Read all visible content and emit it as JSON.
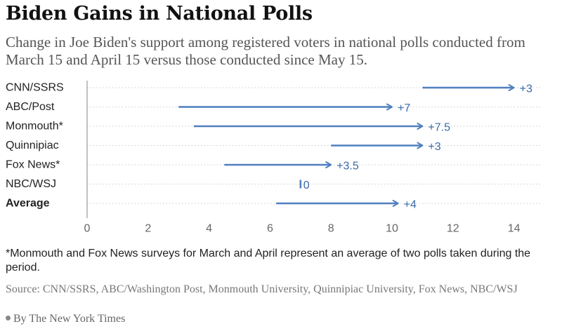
{
  "header": {
    "title": "Biden Gains in National Polls",
    "subtitle": "Change in Joe Biden's support among registered voters in national polls conducted from March 15 and April 15 versus those conducted since May 15."
  },
  "footer": {
    "note": "*Monmouth and Fox News surveys for March and April represent an average of two polls taken during the period.",
    "source": "Source: CNN/SSRS, ABC/Washington Post, Monmouth University, Quinnipiac University, Fox News, NBC/WSJ",
    "byline": "By The New York Times"
  },
  "colors": {
    "arrow": "#4f7fbf",
    "label": "#3a6aa8",
    "grid": "#cccccc",
    "axis": "#999999",
    "text": "#222222",
    "tick": "#666666"
  },
  "chart_data": {
    "type": "arrow-dot",
    "title": "Biden Gains in National Polls",
    "xlim": [
      0,
      15
    ],
    "xticks": [
      0,
      2,
      4,
      6,
      8,
      10,
      12,
      14
    ],
    "grid": "horizontal dotted",
    "series": [
      {
        "name": "CNN/SSRS",
        "from": 11,
        "to": 14,
        "label": "+3",
        "bold": false
      },
      {
        "name": "ABC/Post",
        "from": 3,
        "to": 10,
        "label": "+7",
        "bold": false
      },
      {
        "name": "Monmouth*",
        "from": 3.5,
        "to": 11,
        "label": "+7.5",
        "bold": false
      },
      {
        "name": "Quinnipiac",
        "from": 8,
        "to": 11,
        "label": "+3",
        "bold": false
      },
      {
        "name": "Fox News*",
        "from": 4.5,
        "to": 8,
        "label": "+3.5",
        "bold": false
      },
      {
        "name": "NBC/WSJ",
        "from": 7,
        "to": 7,
        "label": "0",
        "bold": false
      },
      {
        "name": "Average",
        "from": 6.2,
        "to": 10.2,
        "label": "+4",
        "bold": true
      }
    ]
  }
}
